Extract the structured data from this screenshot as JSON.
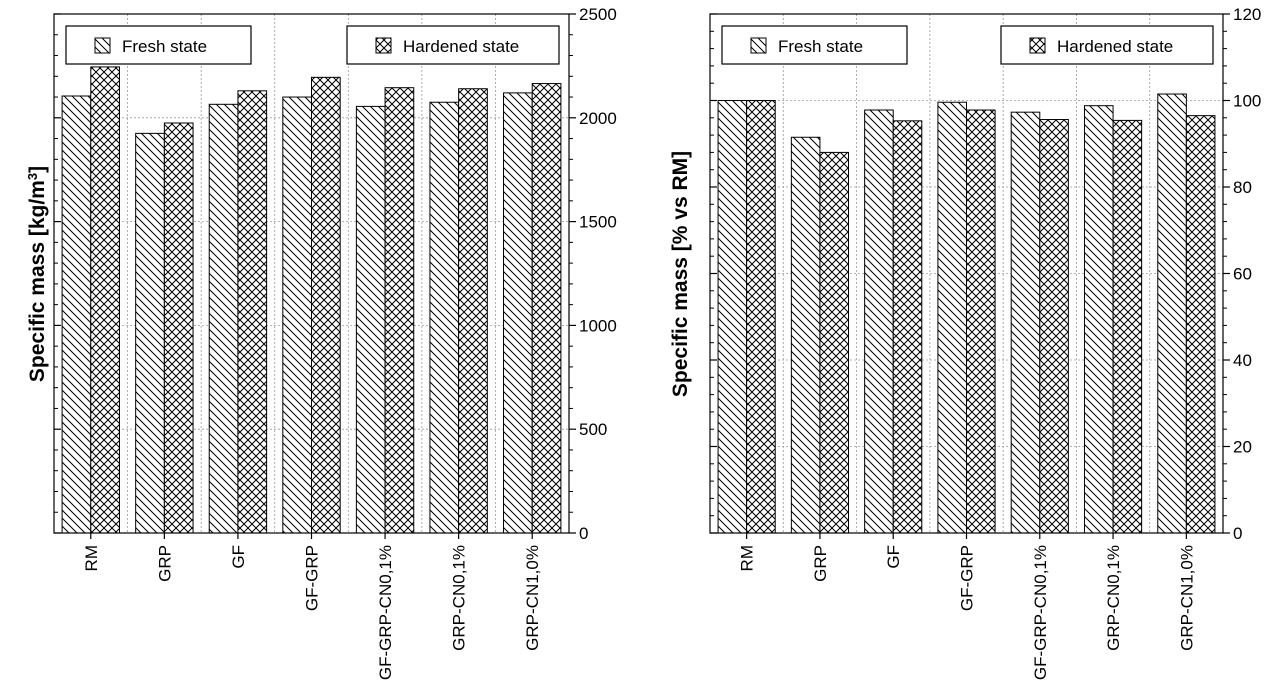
{
  "chart_data": [
    {
      "type": "bar",
      "categories": [
        "RM",
        "GRP",
        "GF",
        "GF-GRP",
        "GF-GRP-CN0,1%",
        "GRP-CN0,1%",
        "GRP-CN1,0%"
      ],
      "series": [
        {
          "name": "Fresh state",
          "pattern": "diagonal",
          "values": [
            2105,
            1925,
            2065,
            2100,
            2055,
            2075,
            2120
          ]
        },
        {
          "name": "Hardened state",
          "pattern": "crosshatch",
          "values": [
            2245,
            1975,
            2130,
            2195,
            2145,
            2140,
            2165
          ]
        }
      ],
      "ylabel": "Specific mass [kg/m3]",
      "ylabel_main": "Specific mass [kg/m",
      "ylabel_sup": "3",
      "ylabel_end": "]",
      "ylim": [
        0,
        2500
      ],
      "yticks": [
        "0",
        "500",
        "1000",
        "1500",
        "2000",
        "2500"
      ],
      "grid": true,
      "y_axis_side": "right",
      "legend_placement": "top, split left and right"
    },
    {
      "type": "bar",
      "categories": [
        "RM",
        "GRP",
        "GF",
        "GF-GRP",
        "GF-GRP-CN0,1%",
        "GRP-CN0,1%",
        "GRP-CN1,0%"
      ],
      "series": [
        {
          "name": "Fresh state",
          "pattern": "diagonal",
          "values": [
            100,
            91.5,
            97.8,
            99.6,
            97.3,
            98.8,
            101.5
          ]
        },
        {
          "name": "Hardened state",
          "pattern": "crosshatch",
          "values": [
            100,
            88,
            95.3,
            97.8,
            95.6,
            95.4,
            96.5
          ]
        }
      ],
      "ylabel": "Specific mass [% vs RM]",
      "ylabel_main": "Specific mass [% vs RM]",
      "ylabel_sup": "",
      "ylabel_end": "",
      "ylim": [
        0,
        120
      ],
      "yticks": [
        "0",
        "20",
        "40",
        "60",
        "80",
        "100",
        "120"
      ],
      "grid": true,
      "y_axis_side": "right",
      "legend_placement": "top, split left and right"
    }
  ]
}
